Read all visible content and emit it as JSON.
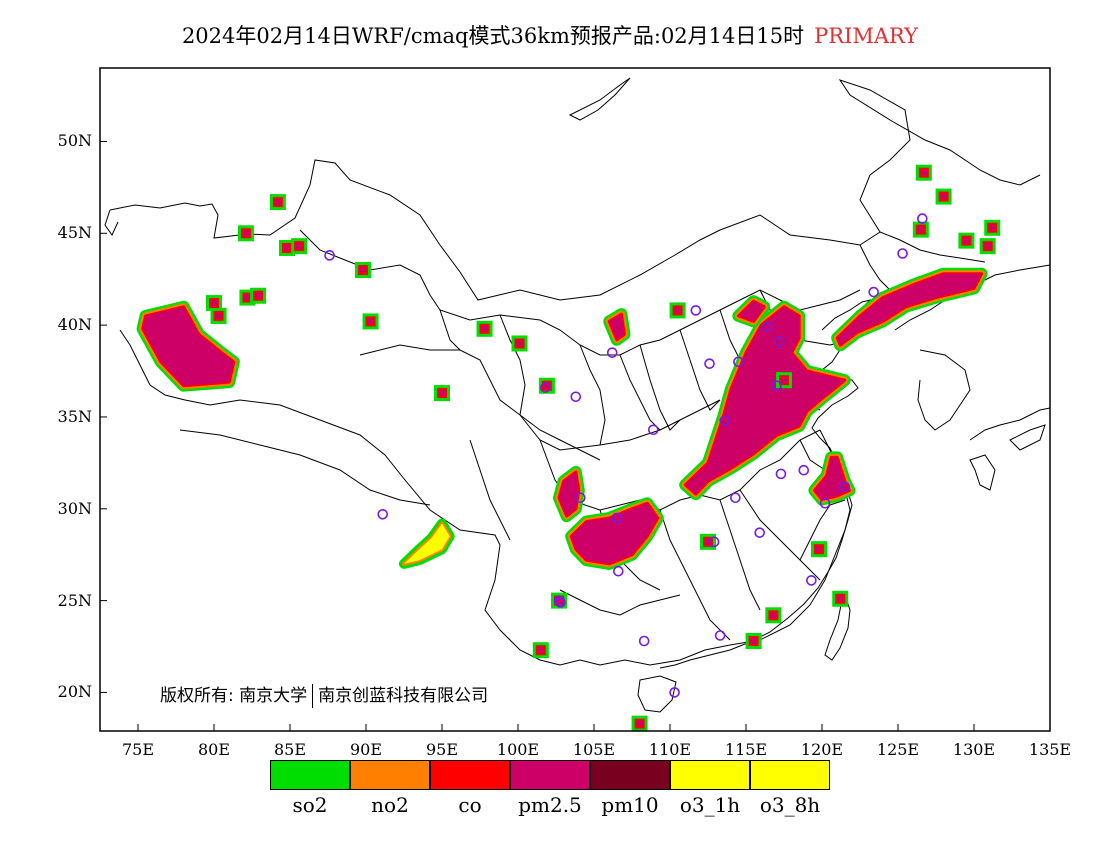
{
  "title": {
    "text": "2024年02月14日WRF/cmaq模式36km预报产品:02月14日15时",
    "status": "PRIMARY",
    "status_color": "#e03030"
  },
  "axes": {
    "lat_labels": [
      "50N",
      "45N",
      "40N",
      "35N",
      "30N",
      "25N",
      "20N"
    ],
    "lon_labels": [
      "75E",
      "80E",
      "85E",
      "90E",
      "95E",
      "100E",
      "105E",
      "110E",
      "115E",
      "120E",
      "125E",
      "130E",
      "135E"
    ]
  },
  "copyright": {
    "label": "版权所有:",
    "owner1": "南京大学",
    "owner2": "南京创蓝科技有限公司"
  },
  "legend": {
    "items": [
      {
        "label": "so2",
        "color": "#00dd00"
      },
      {
        "label": "no2",
        "color": "#ff8000"
      },
      {
        "label": "co",
        "color": "#ff0000"
      },
      {
        "label": "pm2.5",
        "color": "#cc0066"
      },
      {
        "label": "pm10",
        "color": "#7a0020"
      },
      {
        "label": "o3_1h",
        "color": "#ffff00"
      },
      {
        "label": "o3_8h",
        "color": "#ffff00"
      }
    ]
  },
  "markers": {
    "color": "#7a1ae0",
    "points": [
      [
        87.6,
        43.8
      ],
      [
        101.8,
        36.6
      ],
      [
        103.8,
        36.1
      ],
      [
        104.1,
        30.6
      ],
      [
        106.6,
        26.6
      ],
      [
        102.7,
        25.0
      ],
      [
        108.3,
        22.8
      ],
      [
        110.3,
        20.0
      ],
      [
        91.1,
        29.7
      ],
      [
        106.5,
        29.5
      ],
      [
        108.9,
        34.3
      ],
      [
        106.2,
        38.5
      ],
      [
        111.7,
        40.8
      ],
      [
        112.6,
        37.9
      ],
      [
        114.5,
        38.0
      ],
      [
        116.4,
        39.9
      ],
      [
        117.2,
        39.1
      ],
      [
        117.0,
        36.7
      ],
      [
        113.6,
        34.8
      ],
      [
        114.3,
        30.6
      ],
      [
        112.9,
        28.2
      ],
      [
        113.3,
        23.1
      ],
      [
        115.9,
        28.7
      ],
      [
        117.3,
        31.9
      ],
      [
        118.8,
        32.1
      ],
      [
        120.2,
        30.3
      ],
      [
        119.3,
        26.1
      ],
      [
        121.5,
        31.2
      ],
      [
        123.4,
        41.8
      ],
      [
        125.3,
        43.9
      ],
      [
        126.6,
        45.8
      ],
      [
        102.8,
        24.9
      ]
    ]
  },
  "pollution_regions": [
    {
      "name": "tarim-west",
      "poly": [
        [
          75.5,
          40.5
        ],
        [
          78,
          41
        ],
        [
          79,
          39.5
        ],
        [
          80.5,
          38.5
        ],
        [
          81.3,
          38
        ],
        [
          81,
          36.9
        ],
        [
          78,
          36.7
        ],
        [
          76.5,
          38
        ],
        [
          75.3,
          39.8
        ]
      ],
      "yellow": false
    },
    {
      "name": "north-china-plain",
      "poly": [
        [
          111,
          31.3
        ],
        [
          112.5,
          32.5
        ],
        [
          113.5,
          35
        ],
        [
          114,
          36.5
        ],
        [
          115,
          38.5
        ],
        [
          116,
          40
        ],
        [
          117.5,
          41
        ],
        [
          118.5,
          40.5
        ],
        [
          118.5,
          39.3
        ],
        [
          118,
          38.5
        ],
        [
          119,
          37.5
        ],
        [
          120.5,
          37.2
        ],
        [
          121.5,
          37
        ],
        [
          120,
          36
        ],
        [
          119,
          35.3
        ],
        [
          118.5,
          34.5
        ],
        [
          117,
          34
        ],
        [
          115.5,
          33
        ],
        [
          114,
          32.2
        ],
        [
          112.5,
          31.5
        ],
        [
          111.7,
          30.8
        ]
      ],
      "yellow": false
    },
    {
      "name": "liaoning-jilin",
      "poly": [
        [
          121,
          39.3
        ],
        [
          122.5,
          40.5
        ],
        [
          124,
          41.5
        ],
        [
          126,
          42.2
        ],
        [
          128,
          42.8
        ],
        [
          130.5,
          42.8
        ],
        [
          130,
          42
        ],
        [
          127.5,
          41.5
        ],
        [
          125.5,
          41
        ],
        [
          124,
          40.2
        ],
        [
          122.3,
          39.6
        ],
        [
          121.2,
          38.9
        ]
      ],
      "yellow": false
    },
    {
      "name": "sichuan-basin",
      "poly": [
        [
          103.5,
          28.5
        ],
        [
          104.5,
          29.3
        ],
        [
          106,
          29.5
        ],
        [
          107.5,
          30
        ],
        [
          108.5,
          30.3
        ],
        [
          109.2,
          29.5
        ],
        [
          108.5,
          28.5
        ],
        [
          107.5,
          27.5
        ],
        [
          106,
          27
        ],
        [
          104.5,
          27.2
        ],
        [
          103.8,
          27.8
        ]
      ],
      "yellow": false
    },
    {
      "name": "sichuan-west",
      "poly": [
        [
          102.7,
          30.6
        ],
        [
          103,
          31.5
        ],
        [
          103.8,
          32
        ],
        [
          104,
          31
        ],
        [
          103.8,
          30
        ],
        [
          103.2,
          29.6
        ]
      ],
      "yellow": false
    },
    {
      "name": "yangtze-delta",
      "poly": [
        [
          119.5,
          31
        ],
        [
          120.3,
          31.8
        ],
        [
          120.6,
          32.8
        ],
        [
          121,
          32.8
        ],
        [
          121.5,
          31.5
        ],
        [
          121.8,
          31.0
        ],
        [
          121,
          30.7
        ],
        [
          120,
          30.5
        ]
      ],
      "yellow": false
    },
    {
      "name": "tibet-south",
      "poly": [
        [
          92.5,
          27
        ],
        [
          93.5,
          27.8
        ],
        [
          94.3,
          28.4
        ],
        [
          95,
          29.2
        ],
        [
          95.5,
          28.5
        ],
        [
          95,
          27.8
        ],
        [
          93.5,
          27.2
        ]
      ],
      "yellow": true
    },
    {
      "name": "wuhai",
      "poly": [
        [
          106,
          40.2
        ],
        [
          106.8,
          40.6
        ],
        [
          107,
          39.5
        ],
        [
          106.5,
          39.2
        ]
      ],
      "yellow": false
    },
    {
      "name": "zhangjiakou",
      "poly": [
        [
          114.5,
          40.5
        ],
        [
          115.5,
          41.3
        ],
        [
          116.2,
          41
        ],
        [
          115.5,
          40.2
        ]
      ],
      "yellow": false
    }
  ],
  "spots": [
    [
      84.2,
      46.7
    ],
    [
      82.1,
      45.0
    ],
    [
      84.8,
      44.2
    ],
    [
      85.6,
      44.3
    ],
    [
      89.8,
      43.0
    ],
    [
      80.0,
      41.2
    ],
    [
      80.3,
      40.5
    ],
    [
      82.2,
      41.5
    ],
    [
      82.9,
      41.6
    ],
    [
      90.3,
      40.2
    ],
    [
      95.0,
      36.3
    ],
    [
      97.8,
      39.8
    ],
    [
      100.1,
      39.0
    ],
    [
      101.9,
      36.7
    ],
    [
      126.7,
      48.3
    ],
    [
      128.0,
      47.0
    ],
    [
      126.5,
      45.2
    ],
    [
      129.5,
      44.6
    ],
    [
      131.2,
      45.3
    ],
    [
      130.9,
      44.3
    ],
    [
      110.5,
      40.8
    ],
    [
      112.5,
      28.2
    ],
    [
      102.7,
      25.0
    ],
    [
      101.5,
      22.3
    ],
    [
      108.0,
      18.3
    ],
    [
      121.2,
      25.1
    ],
    [
      115.5,
      22.8
    ],
    [
      116.8,
      24.2
    ],
    [
      119.8,
      27.8
    ],
    [
      117.5,
      37.0
    ]
  ]
}
